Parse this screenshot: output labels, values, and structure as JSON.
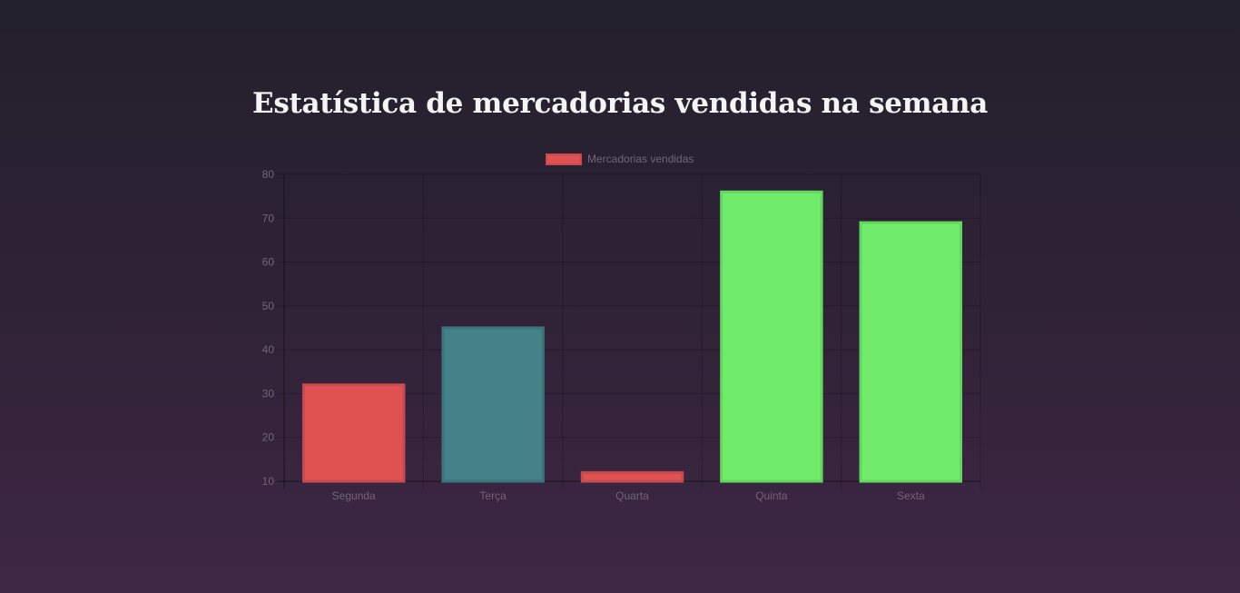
{
  "page": {
    "title": "Estatística de mercadorias vendidas na semana"
  },
  "chart_data": {
    "type": "bar",
    "title": "Estatística de mercadorias vendidas na semana",
    "xlabel": "",
    "ylabel": "",
    "categories": [
      "Segunda",
      "Terça",
      "Quarta",
      "Quinta",
      "Sexta"
    ],
    "series": [
      {
        "name": "Mercadorias vendidas",
        "values": [
          32,
          45,
          12,
          76,
          69
        ],
        "colors": [
          "#e05252",
          "#438288",
          "#e05252",
          "#70eb6a",
          "#70eb6a"
        ],
        "border_colors": [
          "#c94a4e",
          "#3c737a",
          "#c94a4e",
          "#63d65f",
          "#63d65f"
        ]
      }
    ],
    "ylim": [
      10,
      80
    ],
    "yticks": [
      10,
      20,
      30,
      40,
      50,
      60,
      70,
      80
    ],
    "grid": true,
    "legend": {
      "placement": "top-center",
      "swatch_color": "#e05252"
    }
  }
}
